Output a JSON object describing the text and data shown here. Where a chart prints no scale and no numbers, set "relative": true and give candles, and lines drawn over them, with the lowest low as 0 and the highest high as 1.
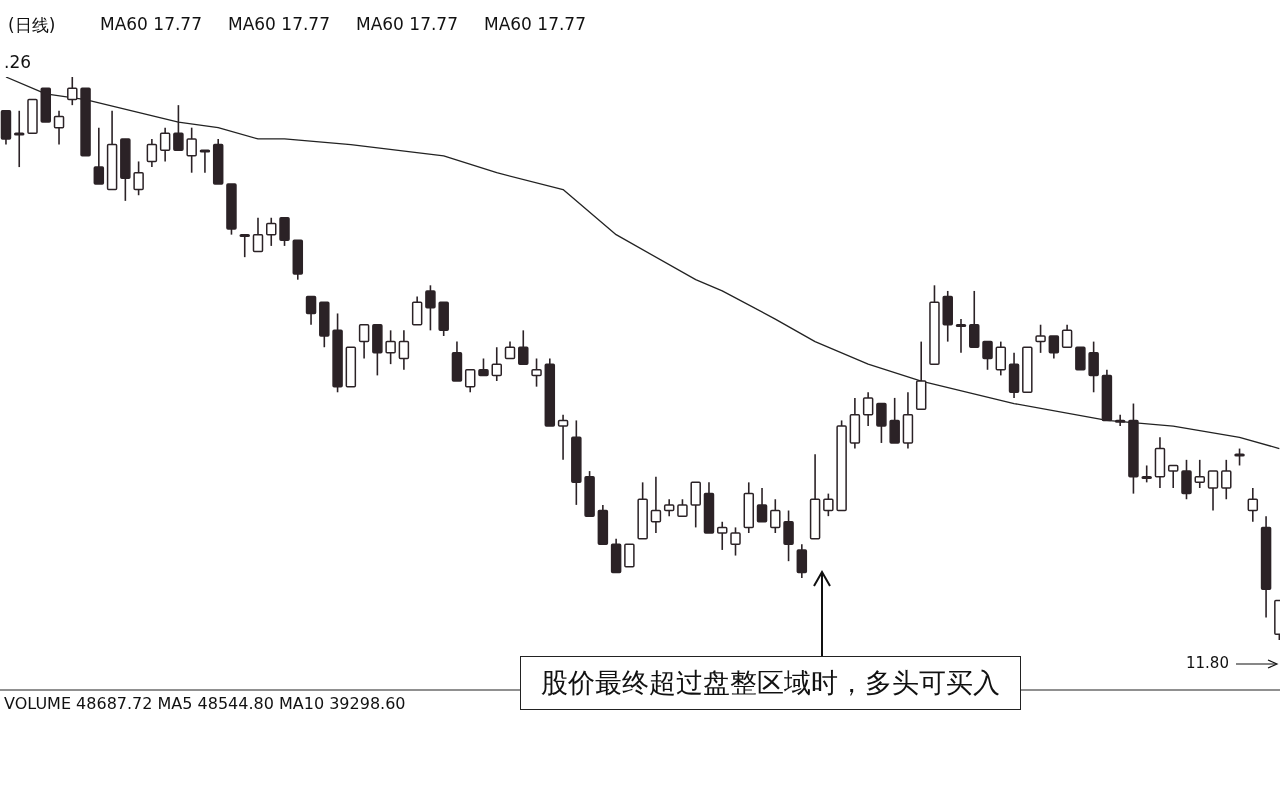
{
  "chart_data": {
    "type": "candlestick",
    "title": "(日线)",
    "relative": true,
    "color": "#2b2226",
    "categories": [
      null,
      null,
      null,
      null,
      null,
      null,
      null,
      null,
      null,
      null,
      null,
      null,
      null,
      null,
      null,
      null,
      null,
      null,
      null,
      null,
      null,
      null,
      null,
      null,
      null,
      null,
      null,
      null,
      null,
      null,
      null,
      null,
      null,
      null,
      null,
      null,
      null,
      null,
      null,
      null,
      null,
      null,
      null,
      null,
      null,
      null,
      null,
      null,
      null,
      null,
      null,
      null,
      null,
      null,
      null,
      null,
      null,
      null,
      null,
      null,
      null,
      null,
      null,
      null,
      null,
      null,
      null,
      null,
      null,
      null,
      null,
      null,
      null,
      null,
      null,
      null,
      null,
      null,
      null,
      null,
      null,
      null,
      null,
      null,
      null,
      null,
      null,
      null,
      null,
      null,
      null,
      null,
      null,
      null,
      null,
      null,
      null
    ],
    "ohlc": [
      [
        0.94,
        0.94,
        0.88,
        0.89
      ],
      [
        0.9,
        0.94,
        0.84,
        0.9
      ],
      [
        0.9,
        0.96,
        0.9,
        0.96
      ],
      [
        0.98,
        0.98,
        0.92,
        0.92
      ],
      [
        0.91,
        0.94,
        0.88,
        0.93
      ],
      [
        0.96,
        1.0,
        0.95,
        0.98
      ],
      [
        0.98,
        0.98,
        0.86,
        0.86
      ],
      [
        0.84,
        0.91,
        0.81,
        0.81
      ],
      [
        0.8,
        0.94,
        0.8,
        0.88
      ],
      [
        0.89,
        0.89,
        0.78,
        0.82
      ],
      [
        0.8,
        0.85,
        0.79,
        0.83
      ],
      [
        0.85,
        0.89,
        0.84,
        0.88
      ],
      [
        0.87,
        0.91,
        0.85,
        0.9
      ],
      [
        0.9,
        0.95,
        0.87,
        0.87
      ],
      [
        0.86,
        0.91,
        0.83,
        0.89
      ],
      [
        0.87,
        0.87,
        0.83,
        0.87
      ],
      [
        0.88,
        0.89,
        0.81,
        0.81
      ],
      [
        0.81,
        0.81,
        0.72,
        0.73
      ],
      [
        0.72,
        0.72,
        0.68,
        0.72
      ],
      [
        0.69,
        0.75,
        0.69,
        0.72
      ],
      [
        0.72,
        0.75,
        0.7,
        0.74
      ],
      [
        0.75,
        0.75,
        0.7,
        0.71
      ],
      [
        0.71,
        0.71,
        0.64,
        0.65
      ],
      [
        0.61,
        0.61,
        0.56,
        0.58
      ],
      [
        0.6,
        0.6,
        0.52,
        0.54
      ],
      [
        0.55,
        0.58,
        0.44,
        0.45
      ],
      [
        0.45,
        0.52,
        0.45,
        0.52
      ],
      [
        0.53,
        0.56,
        0.5,
        0.56
      ],
      [
        0.56,
        0.56,
        0.47,
        0.51
      ],
      [
        0.51,
        0.55,
        0.49,
        0.53
      ],
      [
        0.5,
        0.55,
        0.48,
        0.53
      ],
      [
        0.56,
        0.61,
        0.56,
        0.6
      ],
      [
        0.62,
        0.63,
        0.55,
        0.59
      ],
      [
        0.6,
        0.6,
        0.54,
        0.55
      ],
      [
        0.51,
        0.53,
        0.46,
        0.46
      ],
      [
        0.45,
        0.48,
        0.44,
        0.48
      ],
      [
        0.48,
        0.5,
        0.47,
        0.47
      ],
      [
        0.47,
        0.52,
        0.46,
        0.49
      ],
      [
        0.5,
        0.53,
        0.5,
        0.52
      ],
      [
        0.52,
        0.55,
        0.49,
        0.49
      ],
      [
        0.47,
        0.5,
        0.45,
        0.48
      ],
      [
        0.49,
        0.5,
        0.38,
        0.38
      ],
      [
        0.38,
        0.4,
        0.32,
        0.39
      ],
      [
        0.36,
        0.39,
        0.24,
        0.28
      ],
      [
        0.29,
        0.3,
        0.22,
        0.22
      ],
      [
        0.23,
        0.24,
        0.17,
        0.17
      ],
      [
        0.17,
        0.18,
        0.12,
        0.12
      ],
      [
        0.13,
        0.17,
        0.13,
        0.17
      ],
      [
        0.18,
        0.28,
        0.18,
        0.25
      ],
      [
        0.21,
        0.29,
        0.19,
        0.23
      ],
      [
        0.23,
        0.25,
        0.22,
        0.24
      ],
      [
        0.22,
        0.25,
        0.22,
        0.24
      ],
      [
        0.24,
        0.28,
        0.2,
        0.28
      ],
      [
        0.26,
        0.28,
        0.19,
        0.19
      ],
      [
        0.19,
        0.21,
        0.16,
        0.2
      ],
      [
        0.17,
        0.2,
        0.15,
        0.19
      ],
      [
        0.2,
        0.28,
        0.19,
        0.26
      ],
      [
        0.24,
        0.27,
        0.21,
        0.21
      ],
      [
        0.2,
        0.25,
        0.19,
        0.23
      ],
      [
        0.21,
        0.23,
        0.14,
        0.17
      ],
      [
        0.16,
        0.17,
        0.11,
        0.12
      ],
      [
        0.18,
        0.33,
        0.18,
        0.25
      ],
      [
        0.23,
        0.26,
        0.22,
        0.25
      ],
      [
        0.23,
        0.39,
        0.23,
        0.38
      ],
      [
        0.35,
        0.43,
        0.34,
        0.4
      ],
      [
        0.4,
        0.44,
        0.38,
        0.43
      ],
      [
        0.42,
        0.42,
        0.35,
        0.38
      ],
      [
        0.39,
        0.43,
        0.35,
        0.35
      ],
      [
        0.35,
        0.44,
        0.34,
        0.4
      ],
      [
        0.41,
        0.53,
        0.41,
        0.46
      ],
      [
        0.49,
        0.63,
        0.49,
        0.6
      ],
      [
        0.61,
        0.62,
        0.53,
        0.56
      ],
      [
        0.56,
        0.57,
        0.51,
        0.56
      ],
      [
        0.56,
        0.62,
        0.52,
        0.52
      ],
      [
        0.53,
        0.53,
        0.48,
        0.5
      ],
      [
        0.48,
        0.53,
        0.47,
        0.52
      ],
      [
        0.49,
        0.51,
        0.43,
        0.44
      ],
      [
        0.44,
        0.52,
        0.44,
        0.52
      ],
      [
        0.53,
        0.56,
        0.51,
        0.54
      ],
      [
        0.54,
        0.54,
        0.5,
        0.51
      ],
      [
        0.52,
        0.56,
        0.52,
        0.55
      ],
      [
        0.52,
        0.52,
        0.48,
        0.48
      ],
      [
        0.51,
        0.53,
        0.44,
        0.47
      ],
      [
        0.47,
        0.48,
        0.39,
        0.39
      ],
      [
        0.39,
        0.4,
        0.38,
        0.39
      ],
      [
        0.39,
        0.42,
        0.26,
        0.29
      ],
      [
        0.29,
        0.31,
        0.28,
        0.29
      ],
      [
        0.29,
        0.36,
        0.27,
        0.34
      ],
      [
        0.3,
        0.31,
        0.27,
        0.31
      ],
      [
        0.3,
        0.32,
        0.25,
        0.26
      ],
      [
        0.28,
        0.32,
        0.27,
        0.29
      ],
      [
        0.27,
        0.3,
        0.23,
        0.3
      ],
      [
        0.27,
        0.32,
        0.25,
        0.3
      ],
      [
        0.33,
        0.34,
        0.31,
        0.33
      ],
      [
        0.23,
        0.27,
        0.21,
        0.25
      ],
      [
        0.2,
        0.22,
        0.04,
        0.09
      ],
      [
        0.01,
        0.07,
        0.0,
        0.07
      ]
    ],
    "series": [
      {
        "type": "line",
        "color": "#222222",
        "values": [
          1.0,
          null,
          null,
          0.97,
          null,
          null,
          0.96,
          null,
          null,
          null,
          null,
          null,
          null,
          0.92,
          null,
          null,
          0.91,
          null,
          null,
          0.89,
          null,
          0.89,
          null,
          null,
          null,
          null,
          0.88,
          null,
          null,
          null,
          null,
          null,
          null,
          0.86,
          null,
          null,
          null,
          0.83,
          null,
          null,
          null,
          null,
          0.8,
          null,
          null,
          null,
          0.72,
          null,
          null,
          null,
          null,
          null,
          0.64,
          null,
          0.62,
          null,
          null,
          null,
          0.57,
          null,
          null,
          0.53,
          null,
          null,
          null,
          0.49,
          null,
          null,
          null,
          0.46,
          null,
          null,
          null,
          null,
          null,
          null,
          0.42,
          null,
          null,
          null,
          null,
          null,
          null,
          0.39,
          null,
          null,
          null,
          null,
          0.38,
          null,
          null,
          null,
          null,
          0.36,
          null,
          null,
          0.34
        ]
      }
    ],
    "annotations": [
      "MA60 17.77",
      "MA60 17.77",
      "MA60 17.77",
      "MA60 17.77",
      ".26",
      "11.80",
      "VOLUME 48687.72 MA5 48544.80 MA10 39298.60",
      "股价最终超过盘整区域时，多头可买入"
    ]
  }
}
